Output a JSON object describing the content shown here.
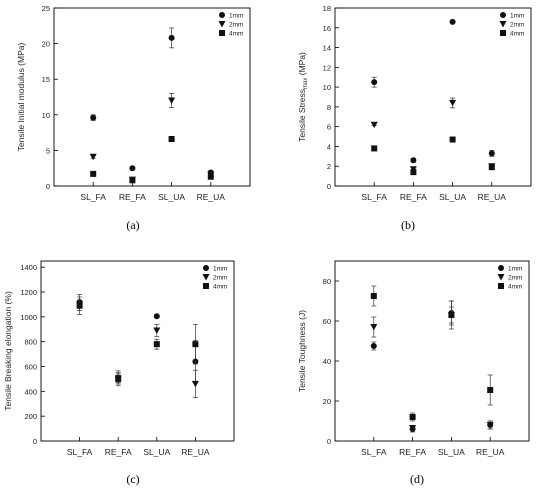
{
  "chart_data": [
    {
      "type": "scatter",
      "caption": "(a)",
      "ylabel": "Tensile Initial modulus (MPa)",
      "categories": [
        "SL_FA",
        "RE_FA",
        "SL_UA",
        "RE_UA"
      ],
      "ylim": [
        0,
        25
      ],
      "yticks": [
        "0",
        "5",
        "10",
        "15",
        "20",
        "25"
      ],
      "grid": false,
      "legend": "top-right",
      "series": [
        {
          "name": "1mm",
          "marker": "circle",
          "values": [
            9.6,
            2.5,
            20.8,
            1.9
          ],
          "err": [
            0.4,
            0.1,
            1.4,
            0.2
          ]
        },
        {
          "name": "2mm",
          "marker": "triangle-down",
          "values": [
            4.1,
            0.9,
            12.0,
            1.6
          ],
          "err": [
            0.2,
            0.1,
            1.0,
            0.1
          ]
        },
        {
          "name": "4mm",
          "marker": "square",
          "values": [
            1.7,
            0.8,
            6.6,
            1.3
          ],
          "err": [
            0.1,
            0.1,
            0.2,
            0.1
          ]
        }
      ]
    },
    {
      "type": "scatter",
      "caption": "(b)",
      "ylabel_main": "Tensile Stress",
      "ylabel_sub": "max",
      "ylabel_unit": " (MPa)",
      "categories": [
        "SL_FA",
        "RE_FA",
        "SL_UA",
        "RE_UA"
      ],
      "ylim": [
        0,
        18
      ],
      "yticks": [
        "0",
        "2",
        "4",
        "6",
        "8",
        "10",
        "12",
        "14",
        "16",
        "18"
      ],
      "grid": false,
      "legend": "top-right",
      "series": [
        {
          "name": "1mm",
          "marker": "circle",
          "values": [
            10.5,
            2.6,
            16.6,
            3.3
          ],
          "err": [
            0.5,
            0.2,
            0.1,
            0.3
          ]
        },
        {
          "name": "2mm",
          "marker": "triangle-down",
          "values": [
            6.2,
            1.7,
            8.4,
            2.0
          ],
          "err": [
            0.1,
            0.2,
            0.5,
            0.2
          ]
        },
        {
          "name": "4mm",
          "marker": "square",
          "values": [
            3.8,
            1.4,
            4.7,
            1.9
          ],
          "err": [
            0.1,
            0.2,
            0.1,
            0.2
          ]
        }
      ]
    },
    {
      "type": "scatter",
      "caption": "(c)",
      "ylabel": "Tensile Breaking elongation (%)",
      "categories": [
        "SL_FA",
        "RE_FA",
        "SL_UA",
        "RE_UA"
      ],
      "ylim": [
        0,
        1450
      ],
      "yticks": [
        "0",
        "200",
        "400",
        "600",
        "800",
        "1000",
        "1200",
        "1400"
      ],
      "grid": false,
      "legend": "top-right",
      "series": [
        {
          "name": "1mm",
          "marker": "circle",
          "values": [
            1120,
            510,
            1005,
            640
          ],
          "err": [
            40,
            40,
            10,
            170
          ]
        },
        {
          "name": "2mm",
          "marker": "triangle-down",
          "values": [
            1100,
            505,
            890,
            460
          ],
          "err": [
            80,
            60,
            50,
            110
          ]
        },
        {
          "name": "4mm",
          "marker": "square",
          "values": [
            1090,
            500,
            780,
            780
          ],
          "err": [
            40,
            40,
            40,
            160
          ]
        }
      ]
    },
    {
      "type": "scatter",
      "caption": "(d)",
      "ylabel": "Tensile Toughness (J)",
      "categories": [
        "SL_FA",
        "RE_FA",
        "SL_UA",
        "RE_UA"
      ],
      "ylim": [
        0,
        90
      ],
      "yticks": [
        "0",
        "20",
        "40",
        "60",
        "80"
      ],
      "grid": false,
      "legend": "top-right",
      "series": [
        {
          "name": "1mm",
          "marker": "circle",
          "values": [
            47.5,
            6.0,
            64.0,
            8.0
          ],
          "err": [
            2.0,
            1.5,
            6.0,
            2.0
          ]
        },
        {
          "name": "2mm",
          "marker": "triangle-down",
          "values": [
            57.0,
            6.5,
            63.0,
            8.0
          ],
          "err": [
            5.0,
            1.0,
            7.0,
            2.0
          ]
        },
        {
          "name": "4mm",
          "marker": "square",
          "values": [
            72.5,
            12.0,
            63.0,
            25.5
          ],
          "err": [
            5.0,
            2.0,
            4.0,
            7.5
          ]
        }
      ]
    }
  ]
}
